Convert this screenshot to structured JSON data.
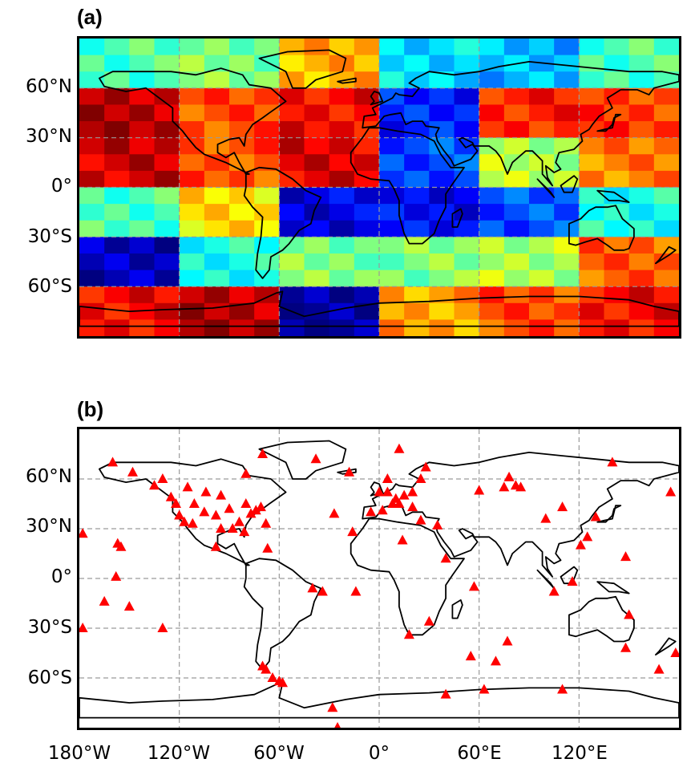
{
  "panels": [
    {
      "label": "(a)",
      "kind": "gridded-field",
      "colormap": "jet"
    },
    {
      "label": "(b)",
      "kind": "station-map",
      "marker": "triangle",
      "marker_color": "#ff0000"
    }
  ],
  "lat_labels": [
    "60°N",
    "30°N",
    "0°",
    "30°S",
    "60°S"
  ],
  "lon_labels": [
    "180°W",
    "120°W",
    "60°W",
    "0°",
    "60°E",
    "120°E"
  ],
  "map": {
    "lon_range": [
      -180,
      180
    ],
    "lat_range": [
      -90,
      90
    ],
    "gridlines": true,
    "grid_lons": [
      -120,
      -60,
      0,
      60,
      120
    ],
    "grid_lats": [
      60,
      30,
      0,
      -30,
      -60
    ],
    "coastline_color": "#000000",
    "grid_color": "#9a9a9a"
  },
  "field_blocks": [
    {
      "lon": [
        -180,
        -120
      ],
      "lat": [
        60,
        90
      ],
      "c": 0.45
    },
    {
      "lon": [
        -120,
        -60
      ],
      "lat": [
        60,
        90
      ],
      "c": 0.5
    },
    {
      "lon": [
        -60,
        0
      ],
      "lat": [
        60,
        90
      ],
      "c": 0.7
    },
    {
      "lon": [
        0,
        60
      ],
      "lat": [
        60,
        90
      ],
      "c": 0.35
    },
    {
      "lon": [
        60,
        120
      ],
      "lat": [
        60,
        90
      ],
      "c": 0.3
    },
    {
      "lon": [
        120,
        180
      ],
      "lat": [
        60,
        90
      ],
      "c": 0.45
    },
    {
      "lon": [
        -180,
        -120
      ],
      "lat": [
        30,
        60
      ],
      "c": 0.95
    },
    {
      "lon": [
        -120,
        -60
      ],
      "lat": [
        30,
        60
      ],
      "c": 0.8
    },
    {
      "lon": [
        -60,
        0
      ],
      "lat": [
        30,
        60
      ],
      "c": 0.88
    },
    {
      "lon": [
        0,
        60
      ],
      "lat": [
        30,
        60
      ],
      "c": 0.15
    },
    {
      "lon": [
        60,
        120
      ],
      "lat": [
        30,
        60
      ],
      "c": 0.85
    },
    {
      "lon": [
        120,
        180
      ],
      "lat": [
        30,
        60
      ],
      "c": 0.82
    },
    {
      "lon": [
        -180,
        -120
      ],
      "lat": [
        0,
        30
      ],
      "c": 0.92
    },
    {
      "lon": [
        -120,
        -60
      ],
      "lat": [
        0,
        30
      ],
      "c": 0.8
    },
    {
      "lon": [
        -60,
        0
      ],
      "lat": [
        0,
        30
      ],
      "c": 0.9
    },
    {
      "lon": [
        0,
        60
      ],
      "lat": [
        0,
        30
      ],
      "c": 0.2
    },
    {
      "lon": [
        60,
        120
      ],
      "lat": [
        0,
        30
      ],
      "c": 0.55
    },
    {
      "lon": [
        120,
        180
      ],
      "lat": [
        0,
        30
      ],
      "c": 0.75
    },
    {
      "lon": [
        -180,
        -120
      ],
      "lat": [
        -30,
        0
      ],
      "c": 0.45
    },
    {
      "lon": [
        -120,
        -60
      ],
      "lat": [
        -30,
        0
      ],
      "c": 0.65
    },
    {
      "lon": [
        -60,
        0
      ],
      "lat": [
        -30,
        0
      ],
      "c": 0.1
    },
    {
      "lon": [
        0,
        60
      ],
      "lat": [
        -30,
        0
      ],
      "c": 0.12
    },
    {
      "lon": [
        60,
        120
      ],
      "lat": [
        -30,
        0
      ],
      "c": 0.2
    },
    {
      "lon": [
        120,
        180
      ],
      "lat": [
        -30,
        0
      ],
      "c": 0.4
    },
    {
      "lon": [
        -180,
        -120
      ],
      "lat": [
        -60,
        -30
      ],
      "c": 0.05
    },
    {
      "lon": [
        -120,
        -60
      ],
      "lat": [
        -60,
        -30
      ],
      "c": 0.4
    },
    {
      "lon": [
        -60,
        0
      ],
      "lat": [
        -60,
        -30
      ],
      "c": 0.5
    },
    {
      "lon": [
        0,
        60
      ],
      "lat": [
        -60,
        -30
      ],
      "c": 0.5
    },
    {
      "lon": [
        60,
        120
      ],
      "lat": [
        -60,
        -30
      ],
      "c": 0.55
    },
    {
      "lon": [
        120,
        180
      ],
      "lat": [
        -60,
        -30
      ],
      "c": 0.78
    },
    {
      "lon": [
        -180,
        -120
      ],
      "lat": [
        -90,
        -60
      ],
      "c": 0.88
    },
    {
      "lon": [
        -120,
        -60
      ],
      "lat": [
        -90,
        -60
      ],
      "c": 0.95
    },
    {
      "lon": [
        -60,
        0
      ],
      "lat": [
        -90,
        -60
      ],
      "c": 0.02
    },
    {
      "lon": [
        0,
        60
      ],
      "lat": [
        -90,
        -60
      ],
      "c": 0.72
    },
    {
      "lon": [
        60,
        120
      ],
      "lat": [
        -90,
        -60
      ],
      "c": 0.8
    },
    {
      "lon": [
        120,
        180
      ],
      "lat": [
        -90,
        -60
      ],
      "c": 0.88
    }
  ],
  "stations": [
    {
      "lon": -178,
      "lat": 27
    },
    {
      "lon": -165,
      "lat": -14
    },
    {
      "lon": -157,
      "lat": 21
    },
    {
      "lon": -155,
      "lat": 19
    },
    {
      "lon": -158,
      "lat": 1
    },
    {
      "lon": -150,
      "lat": -17
    },
    {
      "lon": -178,
      "lat": -30
    },
    {
      "lon": -160,
      "lat": 70
    },
    {
      "lon": -148,
      "lat": 64
    },
    {
      "lon": -135,
      "lat": 56
    },
    {
      "lon": -125,
      "lat": 49
    },
    {
      "lon": -122,
      "lat": 45
    },
    {
      "lon": -120,
      "lat": 38
    },
    {
      "lon": -117,
      "lat": 34
    },
    {
      "lon": -112,
      "lat": 33
    },
    {
      "lon": -105,
      "lat": 40
    },
    {
      "lon": -111,
      "lat": 45
    },
    {
      "lon": -115,
      "lat": 55
    },
    {
      "lon": -104,
      "lat": 52
    },
    {
      "lon": -98,
      "lat": 38
    },
    {
      "lon": -95,
      "lat": 30
    },
    {
      "lon": -90,
      "lat": 42
    },
    {
      "lon": -88,
      "lat": 30
    },
    {
      "lon": -84,
      "lat": 34
    },
    {
      "lon": -81,
      "lat": 28
    },
    {
      "lon": -77,
      "lat": 39
    },
    {
      "lon": -74,
      "lat": 41
    },
    {
      "lon": -71,
      "lat": 43
    },
    {
      "lon": -80,
      "lat": 45
    },
    {
      "lon": -95,
      "lat": 50
    },
    {
      "lon": -80,
      "lat": 63
    },
    {
      "lon": -70,
      "lat": 75
    },
    {
      "lon": -68,
      "lat": 33
    },
    {
      "lon": -67,
      "lat": 18
    },
    {
      "lon": -98,
      "lat": 19
    },
    {
      "lon": -130,
      "lat": 60
    },
    {
      "lon": -34,
      "lat": -8
    },
    {
      "lon": -40,
      "lat": -6
    },
    {
      "lon": -14,
      "lat": -8
    },
    {
      "lon": -70,
      "lat": -53
    },
    {
      "lon": -68,
      "lat": -55
    },
    {
      "lon": -64,
      "lat": -60
    },
    {
      "lon": -58,
      "lat": -63
    },
    {
      "lon": -60,
      "lat": -62
    },
    {
      "lon": -27,
      "lat": 39
    },
    {
      "lon": -16,
      "lat": 28
    },
    {
      "lon": -18,
      "lat": 64
    },
    {
      "lon": -38,
      "lat": 72
    },
    {
      "lon": -28,
      "lat": -78
    },
    {
      "lon": -25,
      "lat": -90
    },
    {
      "lon": 0,
      "lat": 52
    },
    {
      "lon": 5,
      "lat": 52
    },
    {
      "lon": 10,
      "lat": 48
    },
    {
      "lon": 12,
      "lat": 45
    },
    {
      "lon": 15,
      "lat": 50
    },
    {
      "lon": 20,
      "lat": 52
    },
    {
      "lon": 25,
      "lat": 60
    },
    {
      "lon": 20,
      "lat": 43
    },
    {
      "lon": 8,
      "lat": 45
    },
    {
      "lon": 2,
      "lat": 41
    },
    {
      "lon": -5,
      "lat": 40
    },
    {
      "lon": 25,
      "lat": 35
    },
    {
      "lon": 35,
      "lat": 32
    },
    {
      "lon": 12,
      "lat": 78
    },
    {
      "lon": 28,
      "lat": 67
    },
    {
      "lon": 5,
      "lat": 60
    },
    {
      "lon": 14,
      "lat": 23
    },
    {
      "lon": 18,
      "lat": -34
    },
    {
      "lon": 30,
      "lat": -26
    },
    {
      "lon": 40,
      "lat": 12
    },
    {
      "lon": 57,
      "lat": -5
    },
    {
      "lon": 55,
      "lat": -47
    },
    {
      "lon": 70,
      "lat": -50
    },
    {
      "lon": 77,
      "lat": -38
    },
    {
      "lon": 63,
      "lat": -67
    },
    {
      "lon": 40,
      "lat": -70
    },
    {
      "lon": 60,
      "lat": 53
    },
    {
      "lon": 75,
      "lat": 55
    },
    {
      "lon": 82,
      "lat": 56
    },
    {
      "lon": 85,
      "lat": 55
    },
    {
      "lon": 78,
      "lat": 61
    },
    {
      "lon": 100,
      "lat": 36
    },
    {
      "lon": 110,
      "lat": 43
    },
    {
      "lon": 105,
      "lat": -8
    },
    {
      "lon": 116,
      "lat": -2
    },
    {
      "lon": 121,
      "lat": 20
    },
    {
      "lon": 125,
      "lat": 25
    },
    {
      "lon": 130,
      "lat": 37
    },
    {
      "lon": 140,
      "lat": 70
    },
    {
      "lon": 148,
      "lat": 13
    },
    {
      "lon": 150,
      "lat": -22
    },
    {
      "lon": 148,
      "lat": -42
    },
    {
      "lon": 168,
      "lat": -55
    },
    {
      "lon": 178,
      "lat": -45
    },
    {
      "lon": 175,
      "lat": 52
    },
    {
      "lon": 110,
      "lat": -67
    },
    {
      "lon": -130,
      "lat": -30
    }
  ]
}
